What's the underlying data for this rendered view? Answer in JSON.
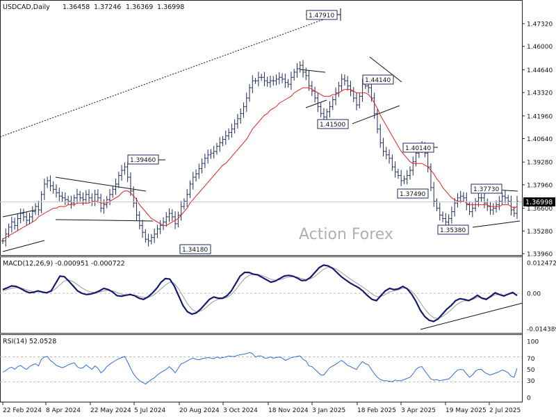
{
  "chart_data": [
    {
      "type": "candlestick",
      "title": "USDCAD,Daily",
      "ohlc": [
        "1.36458",
        "1.37246",
        "1.36369",
        "1.36998"
      ],
      "last_price_label": "1.36998",
      "watermark": "Action Forex",
      "ylim": [
        1.336,
        1.482
      ],
      "y_ticks": [
        "1.47320",
        "1.46000",
        "1.44640",
        "1.43320",
        "1.41960",
        "1.40640",
        "1.39280",
        "1.37960",
        "1.36600",
        "1.35280",
        "1.33960"
      ],
      "x_ticks": [
        "22 Feb 2024",
        "8 Apr 2024",
        "22 May 2024",
        "5 Jul 2024",
        "20 Aug 2024",
        "3 Oct 2024",
        "18 Nov 2024",
        "3 Jan 2025",
        "18 Feb 2025",
        "3 Apr 2025",
        "19 May 2025",
        "2 Jul 2025"
      ],
      "annotations": [
        "1.47910",
        "1.44140",
        "1.41500",
        "1.40140",
        "1.39460",
        "1.37490",
        "1.37730",
        "1.35380",
        "1.34180"
      ],
      "series": [
        {
          "name": "Close",
          "values": [
            1.347,
            1.351,
            1.355,
            1.358,
            1.356,
            1.36,
            1.363,
            1.361,
            1.359,
            1.361,
            1.364,
            1.367,
            1.365,
            1.374,
            1.38,
            1.382,
            1.379,
            1.377,
            1.375,
            1.373,
            1.372,
            1.371,
            1.37,
            1.369,
            1.372,
            1.374,
            1.372,
            1.371,
            1.374,
            1.372,
            1.37,
            1.374,
            1.372,
            1.366,
            1.368,
            1.371,
            1.374,
            1.377,
            1.38,
            1.385,
            1.388,
            1.39,
            1.384,
            1.376,
            1.369,
            1.362,
            1.356,
            1.352,
            1.348,
            1.347,
            1.349,
            1.351,
            1.354,
            1.356,
            1.358,
            1.361,
            1.363,
            1.361,
            1.357,
            1.362,
            1.367,
            1.37,
            1.374,
            1.38,
            1.384,
            1.386,
            1.389,
            1.392,
            1.395,
            1.397,
            1.398,
            1.399,
            1.402,
            1.404,
            1.406,
            1.408,
            1.41,
            1.412,
            1.415,
            1.418,
            1.421,
            1.425,
            1.43,
            1.436,
            1.44,
            1.44,
            1.442,
            1.442,
            1.44,
            1.439,
            1.44,
            1.44,
            1.441,
            1.442,
            1.441,
            1.439,
            1.438,
            1.442,
            1.445,
            1.447,
            1.449,
            1.445,
            1.443,
            1.437,
            1.434,
            1.43,
            1.425,
            1.421,
            1.419,
            1.422,
            1.425,
            1.429,
            1.433,
            1.437,
            1.441,
            1.44,
            1.437,
            1.434,
            1.43,
            1.426,
            1.431,
            1.438,
            1.437,
            1.436,
            1.43,
            1.421,
            1.412,
            1.404,
            1.399,
            1.397,
            1.395,
            1.39,
            1.387,
            1.385,
            1.382,
            1.383,
            1.385,
            1.388,
            1.393,
            1.398,
            1.401,
            1.402,
            1.398,
            1.39,
            1.378,
            1.37,
            1.366,
            1.362,
            1.36,
            1.358,
            1.36,
            1.364,
            1.369,
            1.372,
            1.373,
            1.372,
            1.368,
            1.364,
            1.366,
            1.37,
            1.372,
            1.372,
            1.369,
            1.367,
            1.365,
            1.366,
            1.368,
            1.37,
            1.373,
            1.372,
            1.37,
            1.365,
            1.363,
            1.37
          ]
        },
        {
          "name": "MA",
          "values": [
            1.348,
            1.349,
            1.35,
            1.351,
            1.352,
            1.353,
            1.354,
            1.355,
            1.356,
            1.357,
            1.358,
            1.359,
            1.361,
            1.362,
            1.363,
            1.364,
            1.365,
            1.366,
            1.366,
            1.367,
            1.367,
            1.367,
            1.368,
            1.368,
            1.368,
            1.369,
            1.369,
            1.369,
            1.369,
            1.369,
            1.37,
            1.37,
            1.37,
            1.369,
            1.369,
            1.369,
            1.37,
            1.371,
            1.372,
            1.373,
            1.375,
            1.376,
            1.376,
            1.375,
            1.373,
            1.371,
            1.368,
            1.366,
            1.364,
            1.362,
            1.36,
            1.359,
            1.358,
            1.357,
            1.356,
            1.356,
            1.357,
            1.358,
            1.359,
            1.36,
            1.362,
            1.364,
            1.366,
            1.369,
            1.371,
            1.373,
            1.375,
            1.377,
            1.379,
            1.381,
            1.383,
            1.385,
            1.387,
            1.389,
            1.391,
            1.392,
            1.394,
            1.396,
            1.398,
            1.4,
            1.402,
            1.404,
            1.406,
            1.409,
            1.412,
            1.414,
            1.416,
            1.418,
            1.42,
            1.421,
            1.423,
            1.424,
            1.425,
            1.427,
            1.428,
            1.429,
            1.43,
            1.431,
            1.433,
            1.434,
            1.435,
            1.436,
            1.436,
            1.436,
            1.435,
            1.434,
            1.433,
            1.432,
            1.431,
            1.431,
            1.431,
            1.432,
            1.432,
            1.433,
            1.434,
            1.435,
            1.435,
            1.435,
            1.434,
            1.433,
            1.433,
            1.433,
            1.433,
            1.432,
            1.43,
            1.427,
            1.424,
            1.42,
            1.417,
            1.414,
            1.411,
            1.408,
            1.405,
            1.402,
            1.399,
            1.397,
            1.395,
            1.393,
            1.392,
            1.392,
            1.392,
            1.392,
            1.391,
            1.39,
            1.388,
            1.386,
            1.383,
            1.381,
            1.378,
            1.376,
            1.374,
            1.372,
            1.371,
            1.37,
            1.37,
            1.37,
            1.369,
            1.368,
            1.368,
            1.368,
            1.368,
            1.368,
            1.368,
            1.368,
            1.367,
            1.367,
            1.367,
            1.367,
            1.368,
            1.368,
            1.368,
            1.367,
            1.366,
            1.367
          ]
        }
      ]
    },
    {
      "type": "line",
      "title": "MACD(12,26,9) -0.000951 -0.000722",
      "ylim": [
        -0.01439,
        0.01247
      ],
      "y_ticks": [
        "0.012472",
        "0.00",
        "-0.014389"
      ],
      "series": [
        {
          "name": "MACD",
          "values": [
            0.0015,
            0.0022,
            0.003,
            0.0028,
            0.002,
            0.001,
            0.0002,
            0.0004,
            0.001,
            0.0005,
            0.0002,
            0.001,
            0.004,
            0.007,
            0.0068,
            0.005,
            0.003,
            0.001,
            0,
            -0.0005,
            -0.0003,
            0.0002,
            0.001,
            0.002,
            0.0015,
            0.0005,
            -0.001,
            -0.0012,
            -0.0008,
            -0.0005,
            -0.001,
            -0.002,
            -0.0025,
            -0.0015,
            0,
            0.002,
            0.0045,
            0.006,
            0.0058,
            0.003,
            -0.001,
            -0.005,
            -0.0075,
            -0.0085,
            -0.008,
            -0.0065,
            -0.0045,
            -0.0025,
            -0.0015,
            -0.002,
            -0.002,
            -0.001,
            0.001,
            0.004,
            0.007,
            0.0085,
            0.0085,
            0.0078,
            0.0075,
            0.0065,
            0.0055,
            0.0045,
            0.005,
            0.006,
            0.007,
            0.0073,
            0.007,
            0.0062,
            0.0052,
            0.0053,
            0.0065,
            0.0085,
            0.0105,
            0.0115,
            0.0112,
            0.0102,
            0.0085,
            0.0068,
            0.0055,
            0.0042,
            0.0032,
            0.0022,
            0.0008,
            -0.001,
            -0.0025,
            -0.003,
            -0.001,
            0.001,
            0.002,
            0.0015,
            0.0018,
            0.0028,
            0.0018,
            -0.0003,
            -0.0033,
            -0.007,
            -0.0095,
            -0.011,
            -0.0115,
            -0.0105,
            -0.0085,
            -0.0065,
            -0.005,
            -0.003,
            -0.0022,
            -0.0025,
            -0.003,
            -0.002,
            -0.0008,
            -0.002,
            -0.0025,
            -0.0012,
            0.0002,
            -0.0005,
            -0.0011,
            -0.0003,
            0.0003,
            -0.0009
          ]
        },
        {
          "name": "Signal",
          "values": [
            0.001,
            0.0015,
            0.002,
            0.0023,
            0.0022,
            0.0017,
            0.0011,
            0.0007,
            0.0006,
            0.0005,
            0.0004,
            0.0006,
            0.0018,
            0.0035,
            0.005,
            0.0054,
            0.0048,
            0.0035,
            0.0022,
            0.0012,
            0.0005,
            0.0003,
            0.0005,
            0.001,
            0.0012,
            0.001,
            0.0003,
            -0.0004,
            -0.0007,
            -0.0007,
            -0.0008,
            -0.0012,
            -0.0017,
            -0.0017,
            -0.0011,
            0.0002,
            0.0018,
            0.0034,
            0.0045,
            0.004,
            0.0018,
            -0.0012,
            -0.0042,
            -0.0065,
            -0.0075,
            -0.0073,
            -0.0062,
            -0.0046,
            -0.0032,
            -0.0025,
            -0.0022,
            -0.0017,
            -0.0005,
            0.0015,
            0.0038,
            0.006,
            0.0073,
            0.0078,
            0.0077,
            0.0072,
            0.0065,
            0.0057,
            0.0053,
            0.0055,
            0.0061,
            0.0066,
            0.0068,
            0.0066,
            0.006,
            0.0056,
            0.0059,
            0.0069,
            0.0084,
            0.0098,
            0.0106,
            0.0105,
            0.0097,
            0.0085,
            0.0072,
            0.0059,
            0.0047,
            0.0036,
            0.0024,
            0.0011,
            -0.0003,
            -0.0014,
            -0.0013,
            -0.0005,
            0.0006,
            0.001,
            0.0014,
            0.0021,
            0.002,
            0.0009,
            -0.0011,
            -0.0038,
            -0.0064,
            -0.0085,
            -0.0099,
            -0.0103,
            -0.0095,
            -0.0082,
            -0.0068,
            -0.005,
            -0.0037,
            -0.0031,
            -0.003,
            -0.0025,
            -0.0016,
            -0.0018,
            -0.0021,
            -0.0016,
            -0.0006,
            -0.0005,
            -0.0008,
            -0.0005,
            0,
            -0.0007
          ]
        }
      ]
    },
    {
      "type": "line",
      "title": "RSI(14) 52.0528",
      "ylim": [
        0,
        100
      ],
      "y_ticks": [
        "100",
        "70",
        "50",
        "30",
        "0"
      ],
      "series": [
        {
          "name": "RSI",
          "values": [
            45,
            48,
            52,
            54,
            50,
            55,
            57,
            53,
            50,
            55,
            58,
            60,
            56,
            68,
            72,
            73,
            66,
            62,
            57,
            55,
            53,
            55,
            58,
            60,
            62,
            55,
            52,
            53,
            58,
            54,
            50,
            56,
            52,
            44,
            48,
            55,
            59,
            63,
            66,
            69,
            71,
            73,
            63,
            52,
            42,
            35,
            30,
            27,
            24,
            28,
            32,
            35,
            40,
            44,
            47,
            50,
            55,
            50,
            44,
            52,
            60,
            62,
            65,
            68,
            70,
            68,
            67,
            69,
            70,
            71,
            70,
            69,
            72,
            70,
            71,
            72,
            74,
            73,
            73,
            75,
            76,
            77,
            78,
            80,
            78,
            72,
            74,
            74,
            70,
            70,
            72,
            70,
            71,
            72,
            70,
            66,
            68,
            71,
            72,
            73,
            74,
            68,
            65,
            56,
            55,
            50,
            45,
            40,
            40,
            47,
            53,
            56,
            59,
            63,
            66,
            62,
            57,
            55,
            52,
            50,
            58,
            64,
            60,
            58,
            50,
            42,
            36,
            32,
            30,
            30,
            29,
            28,
            31,
            30,
            30,
            32,
            34,
            36,
            42,
            50,
            54,
            55,
            47,
            40,
            33,
            31,
            32,
            30,
            31,
            32,
            33,
            38,
            44,
            49,
            50,
            49,
            42,
            36,
            40,
            47,
            50,
            50,
            45,
            42,
            40,
            42,
            44,
            46,
            49,
            47,
            44,
            38,
            36,
            52
          ]
        }
      ]
    }
  ]
}
